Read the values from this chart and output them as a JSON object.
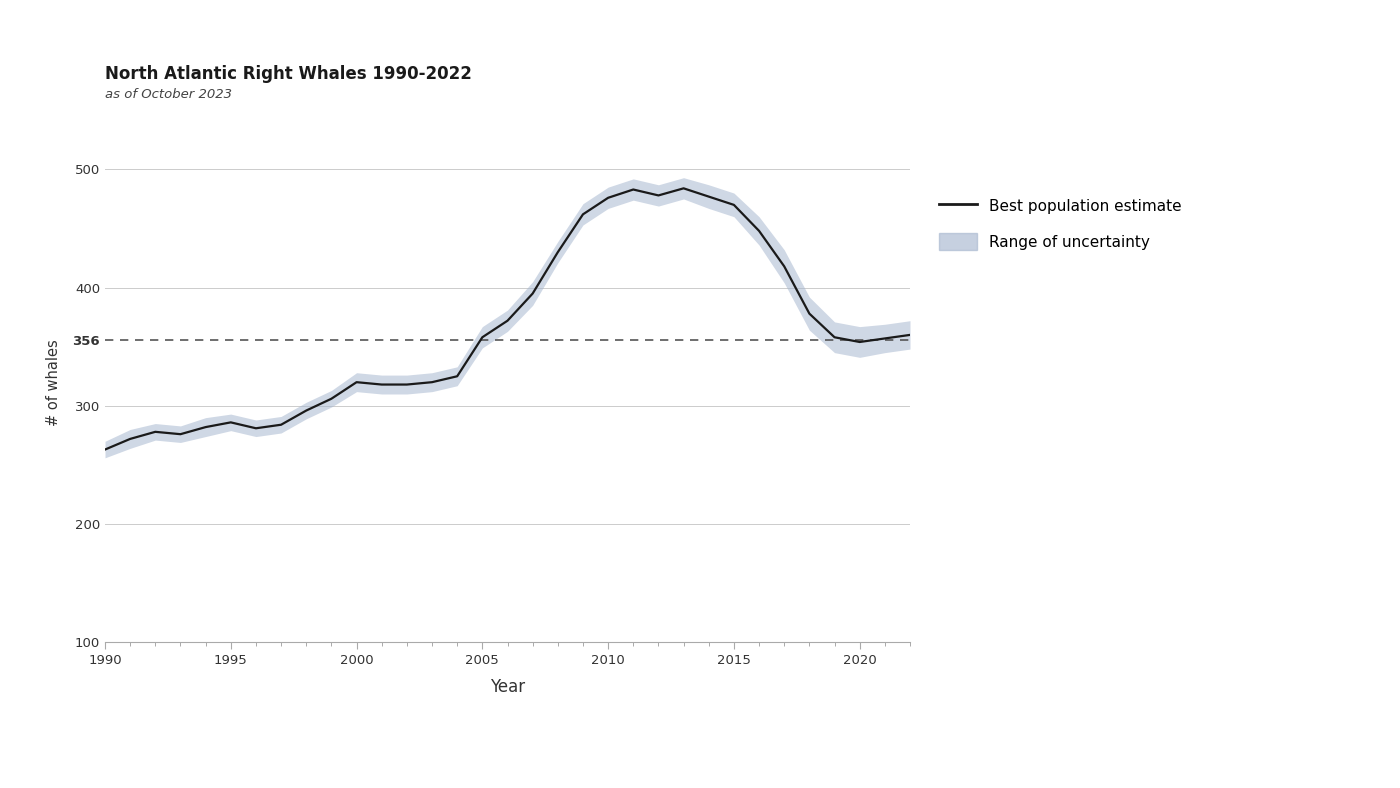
{
  "title": "North Atlantic Right Whales 1990-2022",
  "subtitle": "as of October 2023",
  "xlabel": "Year",
  "ylabel": "# of whales",
  "xlim": [
    1990,
    2022
  ],
  "ylim": [
    100,
    540
  ],
  "yticks_standard": [
    100,
    200,
    300,
    400,
    500
  ],
  "yticks_all": [
    100,
    200,
    300,
    356,
    400,
    500
  ],
  "xticks": [
    1990,
    1995,
    2000,
    2005,
    2010,
    2015,
    2020
  ],
  "dashed_line_y": 356,
  "line_color": "#1a1a1a",
  "shade_color": "#a8b8d0",
  "dashed_color": "#555555",
  "background_color": "#ffffff",
  "grid_color": "#cccccc",
  "years": [
    1990,
    1991,
    1992,
    1993,
    1994,
    1995,
    1996,
    1997,
    1998,
    1999,
    2000,
    2001,
    2002,
    2003,
    2004,
    2005,
    2006,
    2007,
    2008,
    2009,
    2010,
    2011,
    2012,
    2013,
    2014,
    2015,
    2016,
    2017,
    2018,
    2019,
    2020,
    2021,
    2022
  ],
  "best_estimate": [
    263,
    272,
    278,
    276,
    282,
    286,
    281,
    284,
    296,
    306,
    320,
    318,
    318,
    320,
    325,
    358,
    372,
    395,
    430,
    462,
    476,
    483,
    478,
    484,
    477,
    470,
    448,
    418,
    378,
    358,
    354,
    357,
    360
  ],
  "lower_bound": [
    256,
    264,
    271,
    269,
    274,
    279,
    274,
    277,
    289,
    299,
    312,
    310,
    310,
    312,
    317,
    349,
    363,
    385,
    421,
    453,
    467,
    474,
    469,
    475,
    467,
    460,
    436,
    404,
    364,
    345,
    341,
    345,
    348
  ],
  "upper_bound": [
    270,
    280,
    285,
    283,
    290,
    293,
    288,
    291,
    303,
    313,
    328,
    326,
    326,
    328,
    333,
    367,
    381,
    405,
    439,
    471,
    485,
    492,
    487,
    493,
    487,
    480,
    460,
    432,
    392,
    371,
    367,
    369,
    372
  ]
}
